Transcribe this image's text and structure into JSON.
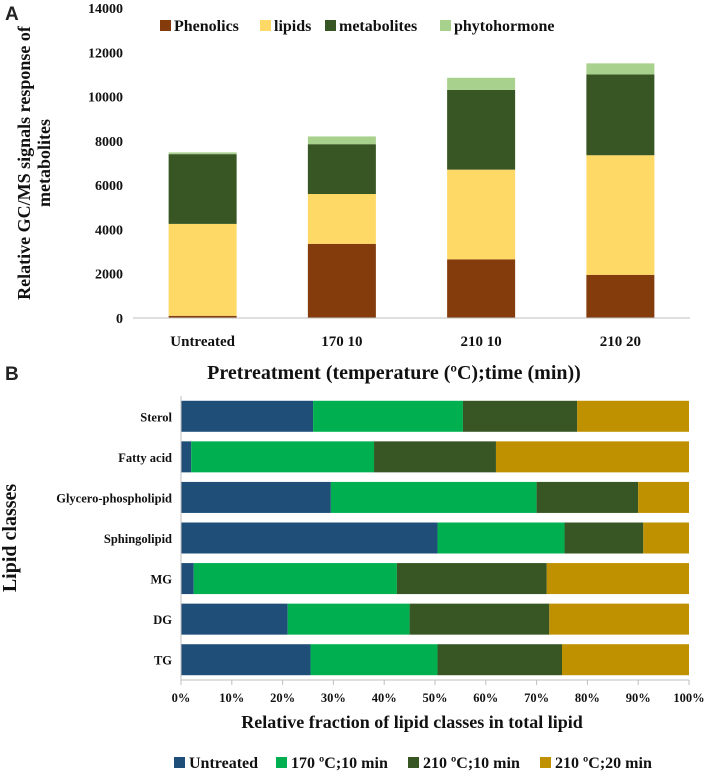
{
  "panels": {
    "a": "A",
    "b": "B"
  },
  "chart_data": [
    {
      "type": "bar",
      "stacked": true,
      "orientation": "vertical",
      "title": "",
      "xlabel": "Pretreatment (temperature (ºC);time (min))",
      "ylabel_lines": [
        "Relative GC/MS signals response of",
        "metabolites"
      ],
      "ylim": [
        0,
        14000
      ],
      "yticks": [
        0,
        2000,
        4000,
        6000,
        8000,
        10000,
        12000,
        14000
      ],
      "categories": [
        "Untreated",
        "170 10",
        "210 10",
        "210 20"
      ],
      "legend_position": "top",
      "series": [
        {
          "name": "Phenolics",
          "color": "#843c0c",
          "values": [
            100,
            3350,
            2650,
            1950
          ]
        },
        {
          "name": "lipids",
          "color": "#ffd966",
          "values": [
            4150,
            2250,
            4050,
            5400
          ]
        },
        {
          "name": "metabolites",
          "color": "#375623",
          "values": [
            3150,
            2250,
            3600,
            3650
          ]
        },
        {
          "name": "phytohormone",
          "color": "#a9d18e",
          "values": [
            80,
            350,
            550,
            500
          ]
        }
      ]
    },
    {
      "type": "bar",
      "stacked": true,
      "orientation": "horizontal",
      "percent": true,
      "title": "",
      "xlabel": "Relative fraction of lipid classes in total lipid",
      "ylabel": "Lipid classes",
      "xlim": [
        0,
        100
      ],
      "xticks": [
        "0%",
        "10%",
        "20%",
        "30%",
        "40%",
        "50%",
        "60%",
        "70%",
        "80%",
        "90%",
        "100%"
      ],
      "categories": [
        "Sterol",
        "Fatty acid",
        "Glycero-phospholipid",
        "Sphingolipid",
        "MG",
        "DG",
        "TG"
      ],
      "legend_position": "bottom",
      "series": [
        {
          "name": "Untreated",
          "color": "#1f4e79",
          "values": [
            26,
            2,
            29.5,
            50.5,
            2.5,
            21,
            25.5
          ]
        },
        {
          "name": "170 ºC;10 min",
          "color": "#00b050",
          "values": [
            29.5,
            36,
            40.5,
            25,
            40,
            24,
            25
          ]
        },
        {
          "name": "210 ºC;10 min",
          "color": "#375623",
          "values": [
            22.5,
            24,
            20,
            15.5,
            29.5,
            27.5,
            24.5
          ]
        },
        {
          "name": "210 ºC;20 min",
          "color": "#bf9000",
          "values": [
            22,
            38,
            10,
            9,
            28,
            27.5,
            25
          ]
        }
      ]
    }
  ]
}
